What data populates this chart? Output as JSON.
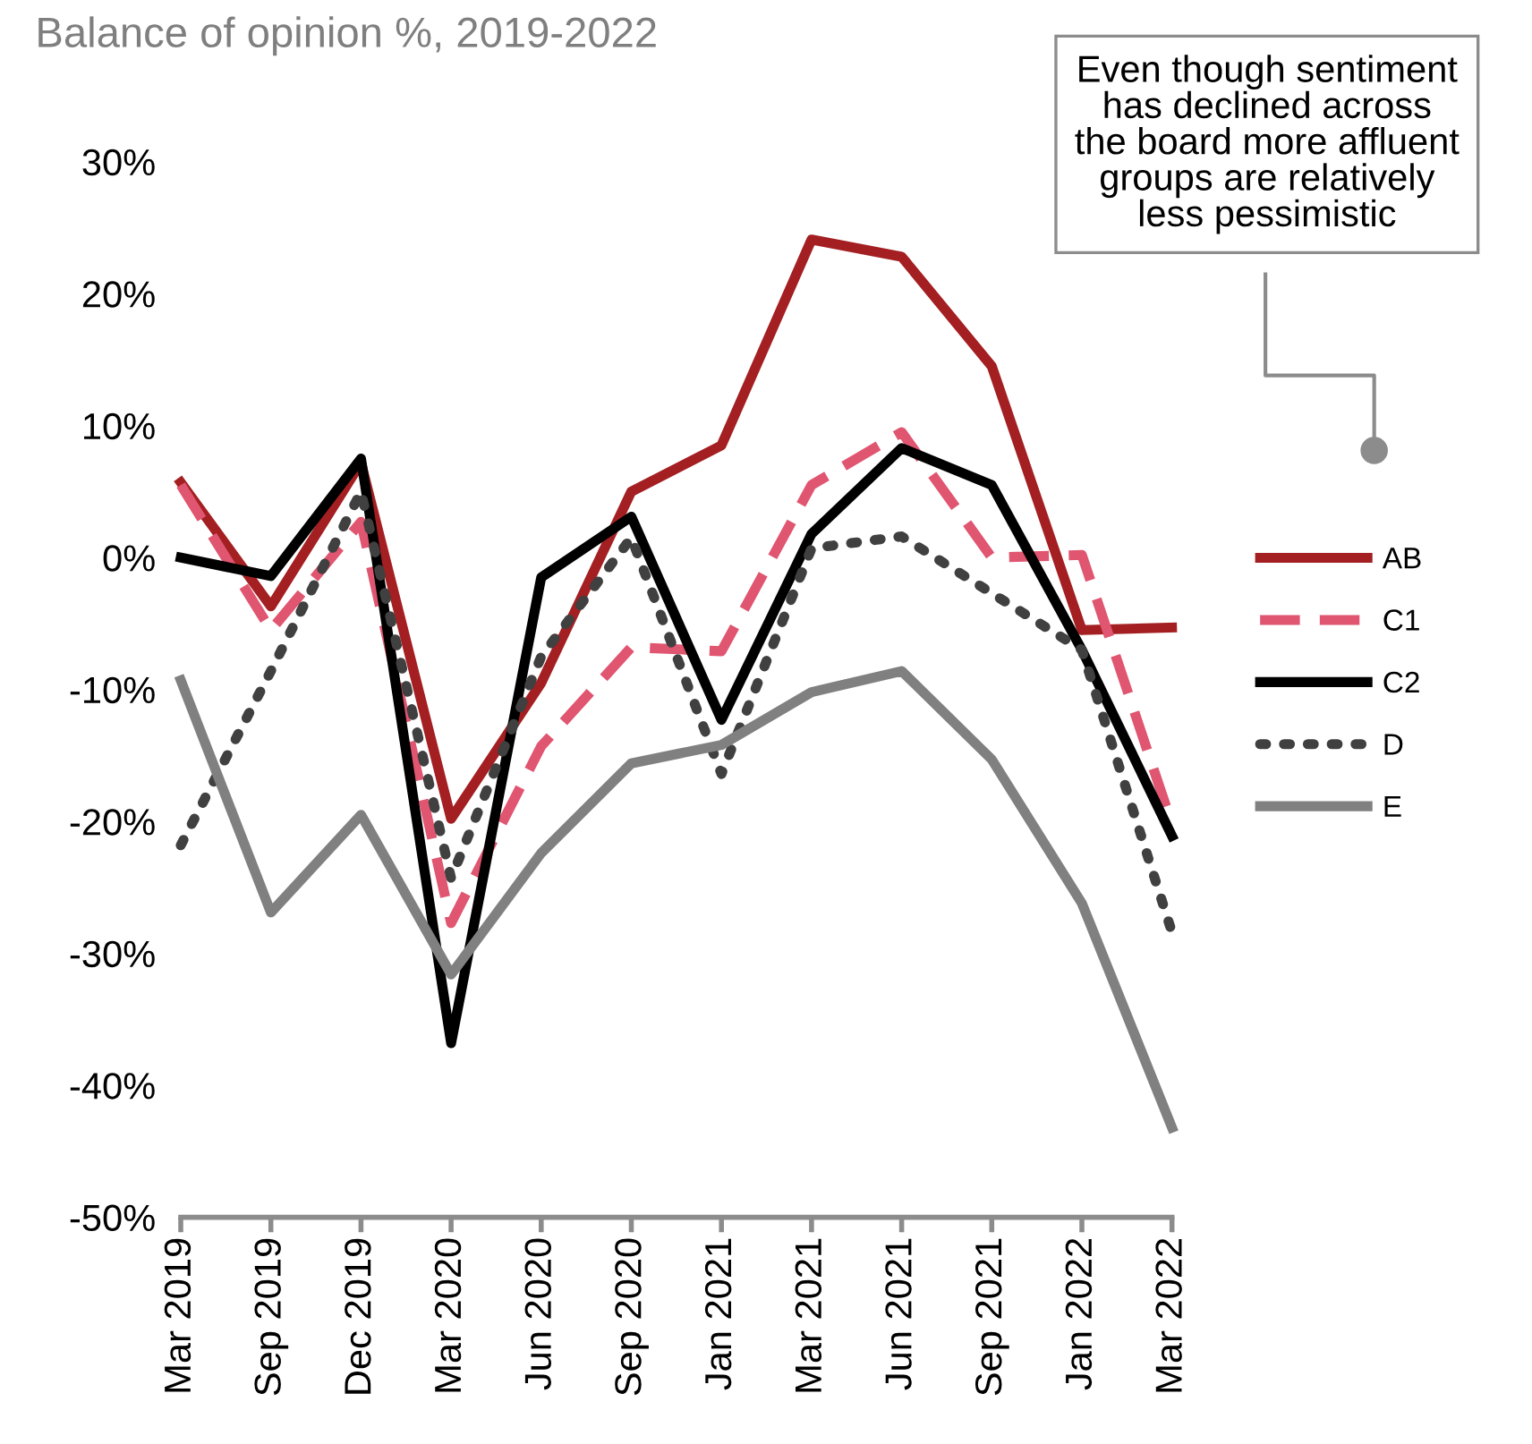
{
  "chart_data": {
    "type": "line",
    "subtitle": "Balance of opinion %, 2019-2022",
    "categories": [
      "Mar 2019",
      "Sep 2019",
      "Dec 2019",
      "Mar 2020",
      "Jun 2020",
      "Sep 2020",
      "Jan 2021",
      "Mar 2021",
      "Jun 2021",
      "Sep 2021",
      "Jan 2022",
      "Mar 2022"
    ],
    "series": [
      {
        "name": "AB",
        "color": "#a31f22",
        "line_style": "solid",
        "values": [
          5.7,
          -3.7,
          7.2,
          -19.8,
          -9.5,
          5,
          8.5,
          24.1,
          22.8,
          14.5,
          -5.5,
          -5.3
        ]
      },
      {
        "name": "C1",
        "color": "#e05570",
        "line_style": "dashed",
        "values": [
          5.5,
          -5.5,
          2.7,
          -27.7,
          -14.3,
          -6.8,
          -7.1,
          5.5,
          9.5,
          0,
          0.2,
          -20.2
        ]
      },
      {
        "name": "C2",
        "color": "#000000",
        "line_style": "solid",
        "values": [
          0,
          -1.4,
          7.5,
          -36.8,
          -1.5,
          3.1,
          -12.3,
          1.8,
          8.3,
          5.5,
          -7,
          -21.1
        ]
      },
      {
        "name": "D",
        "color": "#404040",
        "line_style": "dotted",
        "values": [
          -21.8,
          -8.6,
          5,
          -24.3,
          -7.5,
          1.5,
          -16.4,
          0.7,
          1.6,
          -2.7,
          -7,
          -28.4
        ]
      },
      {
        "name": "E",
        "color": "#808080",
        "line_style": "solid",
        "values": [
          -9.3,
          -26.9,
          -19.5,
          -31.6,
          -22.4,
          -15.6,
          -14.2,
          -10.2,
          -8.6,
          -15.3,
          -26.2,
          -43.2
        ]
      }
    ],
    "ylim": [
      -50,
      30
    ],
    "yticks": [
      {
        "value": -50,
        "label": "-50%"
      },
      {
        "value": -40,
        "label": "-40%"
      },
      {
        "value": -30,
        "label": "-30%"
      },
      {
        "value": -20,
        "label": "-20%"
      },
      {
        "value": -10,
        "label": "-10%"
      },
      {
        "value": 0,
        "label": "0%"
      },
      {
        "value": 10,
        "label": "10%"
      },
      {
        "value": 20,
        "label": "20%"
      },
      {
        "value": 30,
        "label": "30%"
      }
    ],
    "annotations": [
      "Even though sentiment\nhas declined across\nthe board more affluent\ngroups are relatively\nless pessimistic"
    ],
    "legend": "right",
    "grid": false,
    "marker": "none"
  }
}
